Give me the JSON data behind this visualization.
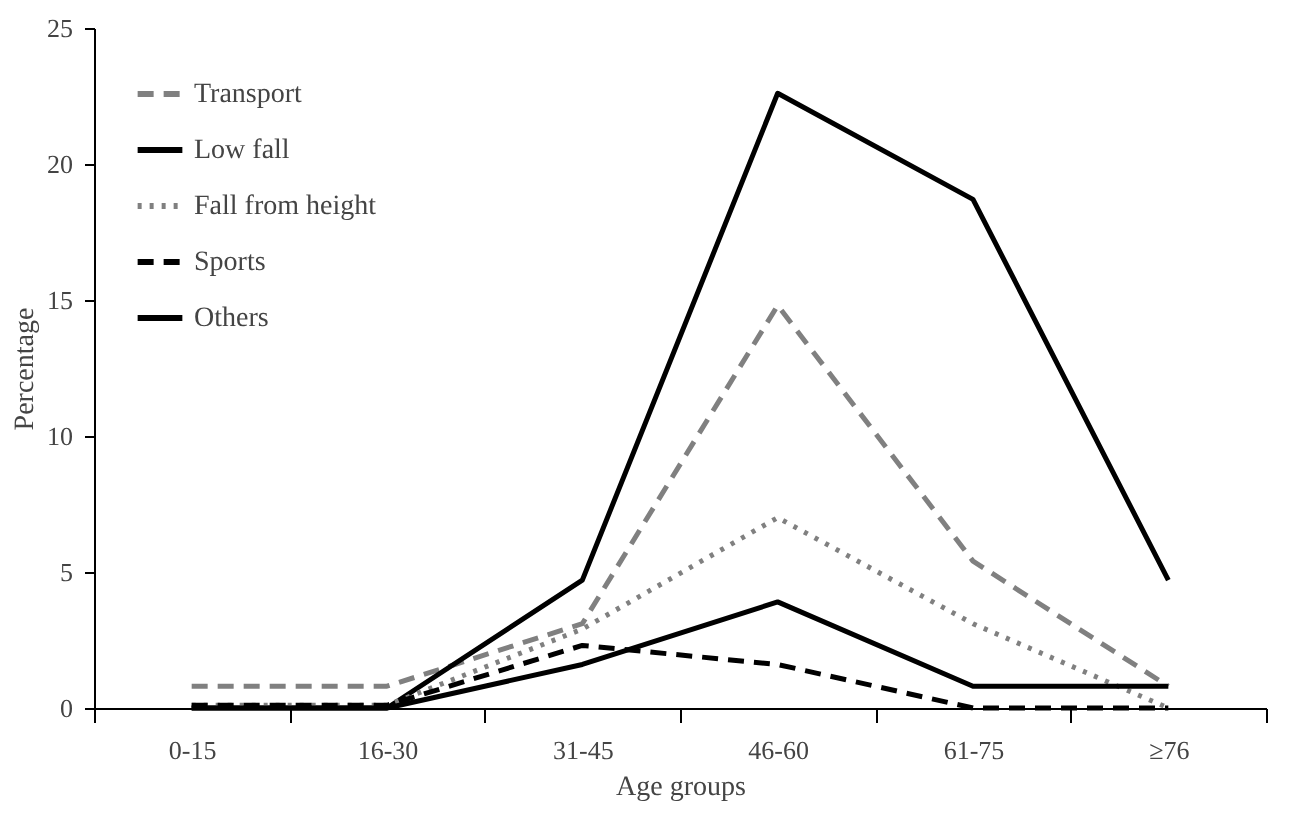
{
  "chart_data": {
    "type": "line",
    "xlabel": "Age groups",
    "ylabel": "Percentage",
    "categories": [
      "0-15",
      "16-30",
      "31-45",
      "46-60",
      "61-75",
      "≥76"
    ],
    "series": [
      {
        "name": "Transport",
        "color": "#808080",
        "line_style": "dashed",
        "values": [
          0.8,
          0.8,
          3.1,
          14.8,
          5.4,
          0.8
        ]
      },
      {
        "name": "Low fall",
        "color": "#000000",
        "line_style": "solid",
        "values": [
          0,
          0,
          4.7,
          22.6,
          18.7,
          4.7
        ]
      },
      {
        "name": "Fall from height",
        "color": "#808080",
        "line_style": "dotted",
        "values": [
          0.1,
          0.1,
          2.9,
          7.0,
          3.1,
          0
        ]
      },
      {
        "name": "Sports",
        "color": "#000000",
        "line_style": "dashed",
        "values": [
          0.1,
          0.1,
          2.3,
          1.6,
          0,
          0
        ]
      },
      {
        "name": "Others",
        "color": "#000000",
        "line_style": "solid",
        "values": [
          0,
          0,
          1.6,
          3.9,
          0.8,
          0.8
        ]
      }
    ],
    "ylim": [
      0,
      25
    ],
    "yticks": [
      0,
      5,
      10,
      15,
      20,
      25
    ],
    "grid": false,
    "legend": "top left",
    "marker": "none"
  }
}
